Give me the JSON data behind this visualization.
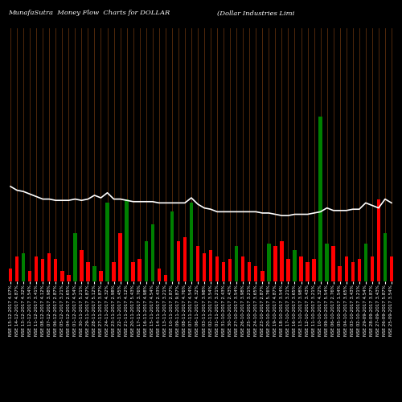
{
  "title_left": "MunafaSutra  Money Flow  Charts for DOLLAR",
  "title_right": "(Dollar Industries Limi",
  "background_color": "#000000",
  "bar_colors": [
    "red",
    "red",
    "green",
    "red",
    "red",
    "red",
    "red",
    "red",
    "red",
    "red",
    "green",
    "red",
    "red",
    "green",
    "red",
    "green",
    "red",
    "red",
    "green",
    "red",
    "red",
    "green",
    "green",
    "red",
    "red",
    "green",
    "red",
    "red",
    "green",
    "red",
    "red",
    "red",
    "red",
    "red",
    "red",
    "green",
    "red",
    "red",
    "red",
    "red",
    "green",
    "red",
    "red",
    "red",
    "green",
    "red",
    "red",
    "red",
    "green",
    "green",
    "red",
    "red",
    "red",
    "red",
    "red",
    "green",
    "red",
    "red",
    "green",
    "red"
  ],
  "bar_heights": [
    10,
    20,
    22,
    8,
    20,
    18,
    22,
    18,
    8,
    5,
    38,
    25,
    15,
    12,
    8,
    62,
    15,
    38,
    65,
    15,
    18,
    32,
    45,
    10,
    5,
    55,
    32,
    35,
    62,
    28,
    22,
    25,
    20,
    15,
    18,
    28,
    20,
    15,
    12,
    8,
    30,
    28,
    32,
    18,
    25,
    20,
    15,
    18,
    130,
    30,
    28,
    12,
    20,
    15,
    18,
    30,
    20,
    65,
    38,
    20
  ],
  "line_y": [
    75,
    72,
    71,
    69,
    67,
    65,
    65,
    64,
    64,
    64,
    65,
    64,
    65,
    68,
    66,
    70,
    65,
    65,
    64,
    63,
    63,
    63,
    63,
    62,
    62,
    62,
    62,
    62,
    66,
    61,
    58,
    57,
    55,
    55,
    55,
    55,
    55,
    55,
    55,
    54,
    54,
    53,
    52,
    52,
    53,
    53,
    53,
    54,
    55,
    58,
    56,
    56,
    56,
    57,
    57,
    62,
    60,
    58,
    65,
    62
  ],
  "line_color": "#ffffff",
  "vline_color": "#8B4513",
  "xlabel_fontsize": 4.0,
  "ylim": [
    0,
    200
  ],
  "n_bars": 60,
  "xlabels": [
    "NSE 15-12-2017 4.07%",
    "NSE 14-12-2017 4.87%",
    "NSE 13-12-2017 4.32%",
    "NSE 12-12-2017 3.54%",
    "NSE 11-12-2017 3.41%",
    "NSE 08-12-2017 4.12%",
    "NSE 07-12-2017 3.98%",
    "NSE 06-12-2017 2.87%",
    "NSE 05-12-2017 3.21%",
    "NSE 04-12-2017 2.65%",
    "NSE 01-12-2017 4.54%",
    "NSE 30-11-2017 5.21%",
    "NSE 29-11-2017 4.87%",
    "NSE 28-11-2017 5.12%",
    "NSE 27-11-2017 3.87%",
    "NSE 24-11-2017 4.32%",
    "NSE 23-11-2017 2.98%",
    "NSE 22-11-2017 3.45%",
    "NSE 21-11-2017 4.12%",
    "NSE 20-11-2017 5.43%",
    "NSE 17-11-2017 3.76%",
    "NSE 16-11-2017 4.98%",
    "NSE 15-11-2017 4.54%",
    "NSE 14-11-2017 2.43%",
    "NSE 13-11-2017 3.21%",
    "NSE 10-11-2017 2.87%",
    "NSE 09-11-2017 9.87%",
    "NSE 08-11-2017 4.76%",
    "NSE 07-11-2017 4.54%",
    "NSE 06-11-2017 4.32%",
    "NSE 03-11-2017 3.98%",
    "NSE 02-11-2017 3.54%",
    "NSE 01-11-2017 3.21%",
    "NSE 31-10-2017 2.43%",
    "NSE 30-10-2017 2.43%",
    "NSE 27-10-2017 3.54%",
    "NSE 26-10-2017 3.98%",
    "NSE 25-10-2017 3.21%",
    "NSE 24-10-2017 3.65%",
    "NSE 23-10-2017 2.87%",
    "NSE 20-10-2017 5.76%",
    "NSE 19-10-2017 4.87%",
    "NSE 18-10-2017 3.54%",
    "NSE 17-10-2017 3.21%",
    "NSE 16-10-2017 3.65%",
    "NSE 13-10-2017 3.98%",
    "NSE 12-10-2017 3.43%",
    "NSE 11-10-2017 3.21%",
    "NSE 10-10-2017 4.32%",
    "NSE 09-10-2017 5.54%",
    "NSE 06-10-2017 2.76%",
    "NSE 05-10-2017 1.54%",
    "NSE 04-10-2017 3.65%",
    "NSE 03-10-2017 3.43%",
    "NSE 02-10-2017 3.21%",
    "NSE 29-09-2017 4.54%",
    "NSE 28-09-2017 3.87%",
    "NSE 27-09-2017 3.43%",
    "NSE 26-09-2017 5.87%",
    "NSE 25-09-2017 3.54%"
  ]
}
